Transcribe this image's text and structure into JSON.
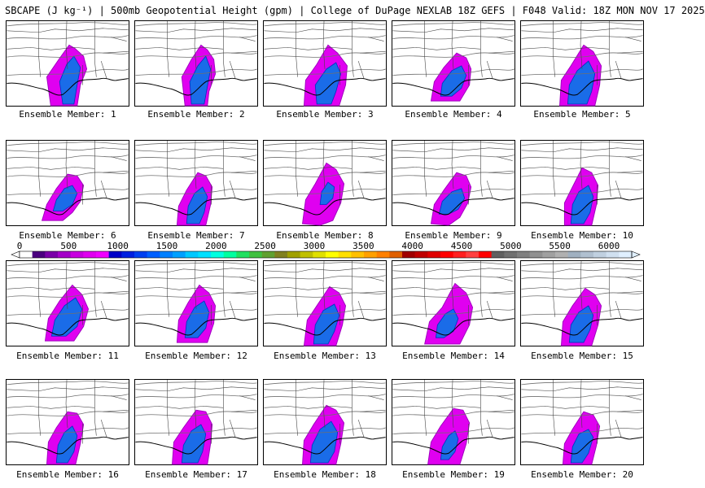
{
  "title": "SBCAPE (J kg⁻¹) | 500mb Geopotential Height (gpm) | College of DuPage NEXLAB 18Z GEFS | F048 Valid: 18Z MON NOV 17 2025",
  "colorbar": {
    "labels": [
      "0",
      "500",
      "1000",
      "1500",
      "2000",
      "2500",
      "3000",
      "3500",
      "4000",
      "4500",
      "5000",
      "5500",
      "6000"
    ],
    "colors": [
      "#ffffff",
      "#4b007f",
      "#7a00a8",
      "#a400c8",
      "#c800e0",
      "#e000f0",
      "#f000ff",
      "#0000c8",
      "#0020e0",
      "#0040f0",
      "#0060ff",
      "#0080ff",
      "#00a0ff",
      "#00c8ff",
      "#00e0ff",
      "#00ffe0",
      "#00ffa0",
      "#20e060",
      "#40c040",
      "#60a030",
      "#808020",
      "#a0a000",
      "#c0c000",
      "#e0e000",
      "#ffff00",
      "#ffe000",
      "#ffc000",
      "#ffa000",
      "#ff8000",
      "#e06000",
      "#a00000",
      "#c00000",
      "#e00000",
      "#ff0000",
      "#ff2020",
      "#ff4040",
      "#ff0000",
      "#606060",
      "#707070",
      "#808080",
      "#909090",
      "#a0a0a0",
      "#b0b0b0",
      "#a0b0c0",
      "#b0c0d0",
      "#c0d0e0",
      "#d0e0f0",
      "#e0f0ff"
    ]
  },
  "members": [
    {
      "label": "Ensemble Member: 1"
    },
    {
      "label": "Ensemble Member: 2"
    },
    {
      "label": "Ensemble Member: 3"
    },
    {
      "label": "Ensemble Member: 4"
    },
    {
      "label": "Ensemble Member: 5"
    },
    {
      "label": "Ensemble Member: 6"
    },
    {
      "label": "Ensemble Member: 7"
    },
    {
      "label": "Ensemble Member: 8"
    },
    {
      "label": "Ensemble Member: 9"
    },
    {
      "label": "Ensemble Member: 10"
    },
    {
      "label": "Ensemble Member: 11"
    },
    {
      "label": "Ensemble Member: 12"
    },
    {
      "label": "Ensemble Member: 13"
    },
    {
      "label": "Ensemble Member: 14"
    },
    {
      "label": "Ensemble Member: 15"
    },
    {
      "label": "Ensemble Member: 16"
    },
    {
      "label": "Ensemble Member: 17"
    },
    {
      "label": "Ensemble Member: 18"
    },
    {
      "label": "Ensemble Member: 19"
    },
    {
      "label": "Ensemble Member: 20"
    }
  ]
}
